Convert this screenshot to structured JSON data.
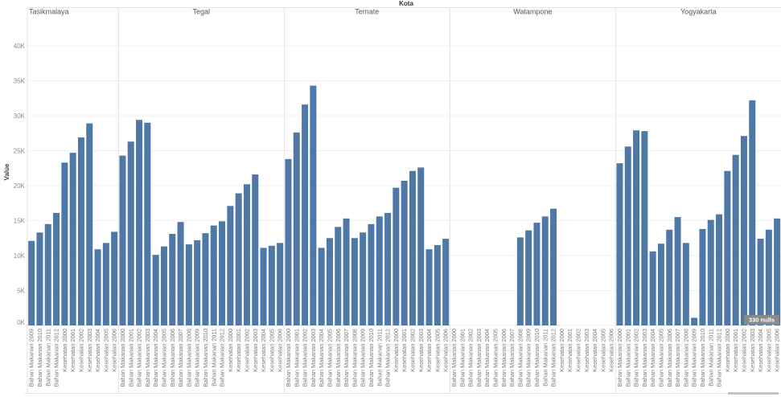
{
  "colors": {
    "bar": "#4e79a7",
    "gridline": "#f0f0f0",
    "separator": "#e3e3e3",
    "nulls_badge": "#8a8a8a",
    "scrollbar_thumb": "#c4c4c4"
  },
  "nulls_indicator": {
    "label": "330 nulls"
  },
  "chart_data": {
    "type": "bar",
    "facet_label": "Kota",
    "y_axis": {
      "label": "Value",
      "ticks": [
        0,
        5000,
        10000,
        15000,
        20000,
        25000,
        30000,
        35000,
        40000
      ],
      "tick_labels": [
        "0K",
        "5K",
        "10K",
        "15K",
        "20K",
        "25K",
        "30K",
        "35K",
        "40K"
      ]
    },
    "ylim": [
      0,
      44000
    ],
    "grid": true,
    "panels": [
      {
        "name": "Tasikmalaya",
        "categories": [
          "Bahan Makanan 2009",
          "Bahan Makanan 2010",
          "Bahan Makanan 2011",
          "Bahan Makanan 2012",
          "Kesehatan 2000",
          "Kesehatan 2001",
          "Kesehatan 2002",
          "Kesehatan 2003",
          "Kesehatan 2004",
          "Kesehatan 2005",
          "Kesehatan 2006"
        ],
        "values": [
          12100,
          13300,
          14500,
          16100,
          23300,
          24700,
          26900,
          28900,
          10900,
          11800,
          13400
        ]
      },
      {
        "name": "Tegal",
        "categories": [
          "Bahan Makanan 2000",
          "Bahan Makanan 2001",
          "Bahan Makanan 2002",
          "Bahan Makanan 2003",
          "Bahan Makanan 2004",
          "Bahan Makanan 2005",
          "Bahan Makanan 2006",
          "Bahan Makanan 2007",
          "Bahan Makanan 2008",
          "Bahan Makanan 2009",
          "Bahan Makanan 2010",
          "Bahan Makanan 2011",
          "Bahan Makanan 2012",
          "Kesehatan 2000",
          "Kesehatan 2001",
          "Kesehatan 2002",
          "Kesehatan 2003",
          "Kesehatan 2004",
          "Kesehatan 2005",
          "Kesehatan 2006"
        ],
        "values": [
          24300,
          26300,
          29400,
          29000,
          10100,
          11300,
          13100,
          14800,
          11600,
          12200,
          13200,
          14300,
          14900,
          17100,
          18900,
          20200,
          21600,
          11100,
          11400,
          11800
        ]
      },
      {
        "name": "Ternate",
        "categories": [
          "Bahan Makanan 2000",
          "Bahan Makanan 2001",
          "Bahan Makanan 2002",
          "Bahan Makanan 2003",
          "Bahan Makanan 2004",
          "Bahan Makanan 2005",
          "Bahan Makanan 2006",
          "Bahan Makanan 2007",
          "Bahan Makanan 2008",
          "Bahan Makanan 2009",
          "Bahan Makanan 2010",
          "Bahan Makanan 2011",
          "Bahan Makanan 2012",
          "Kesehatan 2000",
          "Kesehatan 2001",
          "Kesehatan 2002",
          "Kesehatan 2003",
          "Kesehatan 2004",
          "Kesehatan 2005",
          "Kesehatan 2006"
        ],
        "values": [
          23800,
          27600,
          31600,
          34300,
          11100,
          12500,
          14100,
          15300,
          12500,
          13300,
          14500,
          15600,
          16100,
          19700,
          20700,
          22100,
          22600,
          10900,
          11500,
          12400
        ]
      },
      {
        "name": "Watampone",
        "categories": [
          "Bahan Makanan 2000",
          "Bahan Makanan 2001",
          "Bahan Makanan 2002",
          "Bahan Makanan 2003",
          "Bahan Makanan 2004",
          "Bahan Makanan 2005",
          "Bahan Makanan 2006",
          "Bahan Makanan 2007",
          "Bahan Makanan 2008",
          "Bahan Makanan 2009",
          "Bahan Makanan 2010",
          "Bahan Makanan 2011",
          "Bahan Makanan 2012",
          "Kesehatan 2000",
          "Kesehatan 2001",
          "Kesehatan 2002",
          "Kesehatan 2003",
          "Kesehatan 2004",
          "Kesehatan 2005",
          "Kesehatan 2006"
        ],
        "values": [
          null,
          null,
          null,
          null,
          null,
          null,
          null,
          null,
          12600,
          13600,
          14700,
          15600,
          16700,
          null,
          null,
          null,
          null,
          null,
          null,
          null
        ]
      },
      {
        "name": "Yogyakarta",
        "categories": [
          "Bahan Makanan 2000",
          "Bahan Makanan 2001",
          "Bahan Makanan 2002",
          "Bahan Makanan 2003",
          "Bahan Makanan 2004",
          "Bahan Makanan 2005",
          "Bahan Makanan 2006",
          "Bahan Makanan 2007",
          "Bahan Makanan 2008",
          "Bahan Makanan 2009",
          "Bahan Makanan 2010",
          "Bahan Makanan 2011",
          "Bahan Makanan 2012",
          "Kesehatan 2000",
          "Kesehatan 2001",
          "Kesehatan 2002",
          "Kesehatan 2003",
          "Kesehatan 2004",
          "Kesehatan 2005",
          "Kesehatan 2006"
        ],
        "values": [
          23200,
          25600,
          27900,
          27800,
          10600,
          11700,
          13700,
          15500,
          11800,
          1100,
          13800,
          15100,
          15900,
          22100,
          24400,
          27100,
          32200,
          12400,
          13700,
          15300
        ]
      }
    ]
  }
}
